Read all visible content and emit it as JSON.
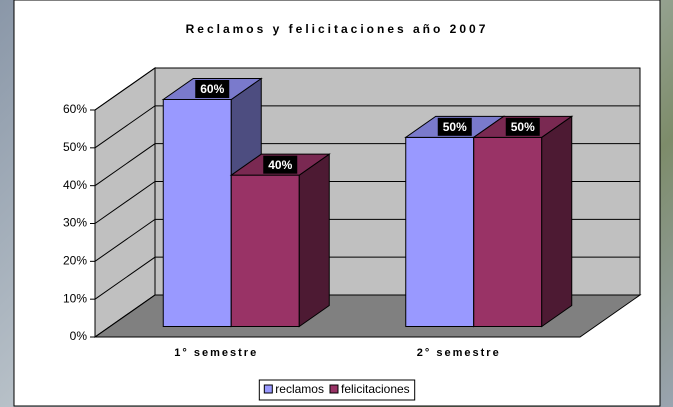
{
  "chart_data": {
    "type": "bar3d",
    "title": "Reclamos y felicitaciones año 2007",
    "categories": [
      "1° semestre",
      "2° semestre"
    ],
    "series": [
      {
        "name": "reclamos",
        "color": "#9999ff",
        "values": [
          60,
          50
        ],
        "value_labels": [
          "60%",
          "50%"
        ]
      },
      {
        "name": "felicitaciones",
        "color": "#993366",
        "values": [
          40,
          50
        ],
        "value_labels": [
          "40%",
          "50%"
        ]
      }
    ],
    "ylim": [
      0,
      60
    ],
    "yticks": [
      {
        "value": 0,
        "label": "0%"
      },
      {
        "value": 10,
        "label": "10%"
      },
      {
        "value": 20,
        "label": "20%"
      },
      {
        "value": 30,
        "label": "30%"
      },
      {
        "value": 40,
        "label": "40%"
      },
      {
        "value": 50,
        "label": "50%"
      },
      {
        "value": 60,
        "label": "60%"
      }
    ],
    "grid": true,
    "legend": "bottom"
  }
}
